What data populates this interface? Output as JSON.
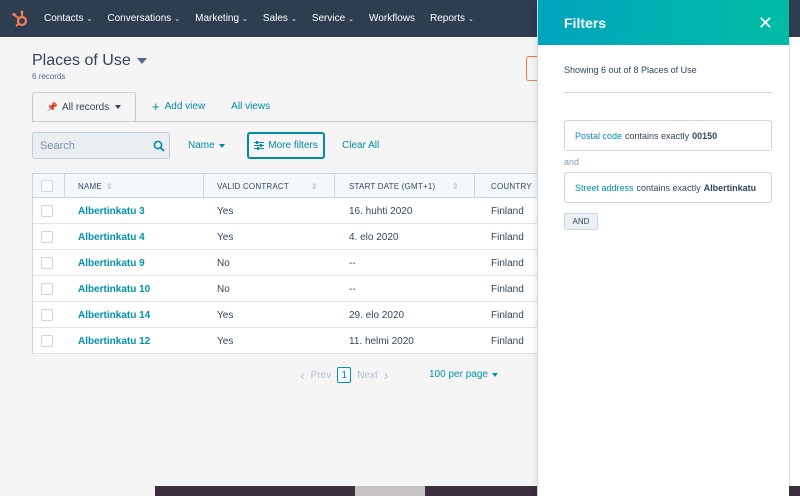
{
  "nav": {
    "items": [
      "Contacts",
      "Conversations",
      "Marketing",
      "Sales",
      "Service",
      "Workflows",
      "Reports"
    ],
    "has_dropdown": [
      true,
      true,
      true,
      true,
      true,
      false,
      true
    ],
    "brand_color": "#ff7a59"
  },
  "page": {
    "title": "Places of Use",
    "record_count": "6 records"
  },
  "views": {
    "active": "All records",
    "add_view": "Add view",
    "all_views": "All views"
  },
  "filterbar": {
    "search_placeholder": "Search",
    "name_filter": "Name",
    "more_filters": "More filters",
    "clear_all": "Clear All"
  },
  "table": {
    "headers": [
      "NAME",
      "VALID CONTRACT",
      "START DATE (GMT+1)",
      "COUNTRY"
    ],
    "rows": [
      [
        "Albertinkatu 3",
        "Yes",
        "16. huhti 2020",
        "Finland"
      ],
      [
        "Albertinkatu 4",
        "Yes",
        "4. elo 2020",
        "Finland"
      ],
      [
        "Albertinkatu 9",
        "No",
        "--",
        "Finland"
      ],
      [
        "Albertinkatu 10",
        "No",
        "--",
        "Finland"
      ],
      [
        "Albertinkatu 14",
        "Yes",
        "29. elo 2020",
        "Finland"
      ],
      [
        "Albertinkatu 12",
        "Yes",
        "11. helmi 2020",
        "Finland"
      ]
    ]
  },
  "pagination": {
    "prev": "Prev",
    "page": "1",
    "next": "Next",
    "per_page": "100 per page"
  },
  "filters_panel": {
    "title": "Filters",
    "summary": "Showing 6 out of 8 Places of Use",
    "filters": [
      {
        "property": "Postal code",
        "operator": "contains exactly",
        "value": "00150"
      },
      {
        "property": "Street address",
        "operator": "contains exactly",
        "value": "Albertinkatu"
      }
    ],
    "joiner": "and",
    "and_button": "AND",
    "header_color": "#00a4bd"
  }
}
